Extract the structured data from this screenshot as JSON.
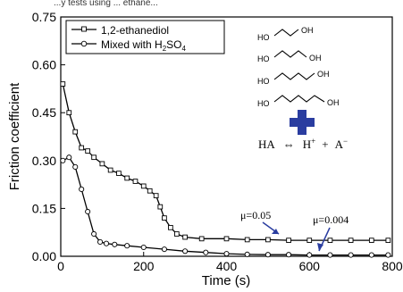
{
  "header": {
    "cut_caption": "...y tests using ... ethane..."
  },
  "chart_data": {
    "type": "line",
    "xlabel": "Time (s)",
    "ylabel": "Friction coefficient",
    "xlim": [
      0,
      800
    ],
    "ylim": [
      0,
      0.75
    ],
    "x_ticks": [
      "0",
      "200",
      "400",
      "600",
      "800"
    ],
    "y_ticks": [
      "0.00",
      "0.15",
      "0.30",
      "0.45",
      "0.60",
      "0.75"
    ],
    "grid": false,
    "legend_position": "top-left",
    "series": [
      {
        "name": "1,2-ethanediol",
        "marker": "square",
        "color": "#000000",
        "x": [
          5,
          20,
          35,
          50,
          65,
          80,
          100,
          120,
          140,
          160,
          180,
          200,
          215,
          230,
          240,
          250,
          265,
          280,
          300,
          340,
          400,
          450,
          500,
          550,
          600,
          650,
          700,
          750,
          790
        ],
        "y": [
          0.54,
          0.45,
          0.39,
          0.34,
          0.33,
          0.31,
          0.29,
          0.27,
          0.26,
          0.245,
          0.235,
          0.22,
          0.205,
          0.19,
          0.155,
          0.12,
          0.09,
          0.07,
          0.06,
          0.055,
          0.055,
          0.052,
          0.052,
          0.05,
          0.05,
          0.05,
          0.05,
          0.05,
          0.05
        ]
      },
      {
        "name": "Mixed with H2SO4",
        "name_main": "Mixed with H",
        "name_sub": "2",
        "name_end": "SO",
        "name_sub2": "4",
        "marker": "circle",
        "color": "#000000",
        "x": [
          5,
          20,
          35,
          50,
          65,
          80,
          95,
          110,
          130,
          160,
          200,
          250,
          300,
          350,
          400,
          450,
          500,
          550,
          600,
          650,
          700,
          750,
          790
        ],
        "y": [
          0.3,
          0.31,
          0.28,
          0.21,
          0.14,
          0.07,
          0.045,
          0.04,
          0.037,
          0.033,
          0.028,
          0.022,
          0.016,
          0.012,
          0.008,
          0.006,
          0.005,
          0.005,
          0.004,
          0.004,
          0.004,
          0.004,
          0.004
        ]
      }
    ],
    "annotations": [
      {
        "label": "μ=0.05",
        "target_x": 510,
        "target_y": 0.05
      },
      {
        "label": "μ=0.004",
        "target_x": 620,
        "target_y": 0.004
      }
    ],
    "inset": {
      "molecule_labels": [
        "HO",
        "OH",
        "HO",
        "OH",
        "HO",
        "OH",
        "HO",
        "OH"
      ],
      "equation": {
        "left": "HA",
        "arrow": "⇔",
        "cation": "H",
        "cation_sup": "+",
        "plus": "+",
        "anion": "A",
        "anion_sup": "−"
      },
      "cross_color": "#2a3da0"
    }
  }
}
